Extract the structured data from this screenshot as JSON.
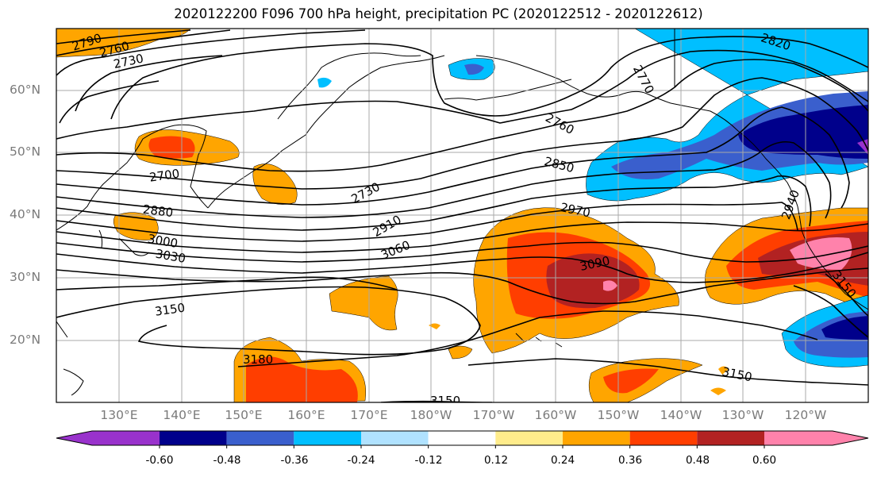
{
  "title": "2020122200 F096 700 hPa height, precipitation PC (2020122512 - 2020122612)",
  "lat_labels": [
    "60°N",
    "50°N",
    "40°N",
    "30°N",
    "20°N"
  ],
  "lon_labels": [
    "130°E",
    "140°E",
    "150°E",
    "160°E",
    "170°E",
    "180°W",
    "170°W",
    "160°W",
    "150°W",
    "140°W",
    "130°W",
    "120°W"
  ],
  "contour_labels": [
    "2790",
    "2760",
    "2730",
    "2820",
    "2770",
    "2760",
    "2700",
    "2730",
    "2850",
    "2880",
    "2910",
    "2970",
    "3000",
    "3030",
    "3060",
    "3090",
    "2940",
    "3150",
    "3180",
    "3150",
    "3150",
    "3150"
  ],
  "colorbar": {
    "ticks": [
      "-0.60",
      "-0.48",
      "-0.36",
      "-0.24",
      "-0.12",
      "0.12",
      "0.24",
      "0.36",
      "0.48",
      "0.60"
    ],
    "colors": [
      "#9932cc",
      "#00008b",
      "#3a5fcd",
      "#00bfff",
      "#b0e2ff",
      "#ffffff",
      "#ffec8b",
      "#ffa500",
      "#ff3e00",
      "#b22222",
      "#ff82ab"
    ]
  },
  "colors": {
    "grid": "#a8a8a8",
    "coast": "#000000",
    "contour": "#000000"
  }
}
